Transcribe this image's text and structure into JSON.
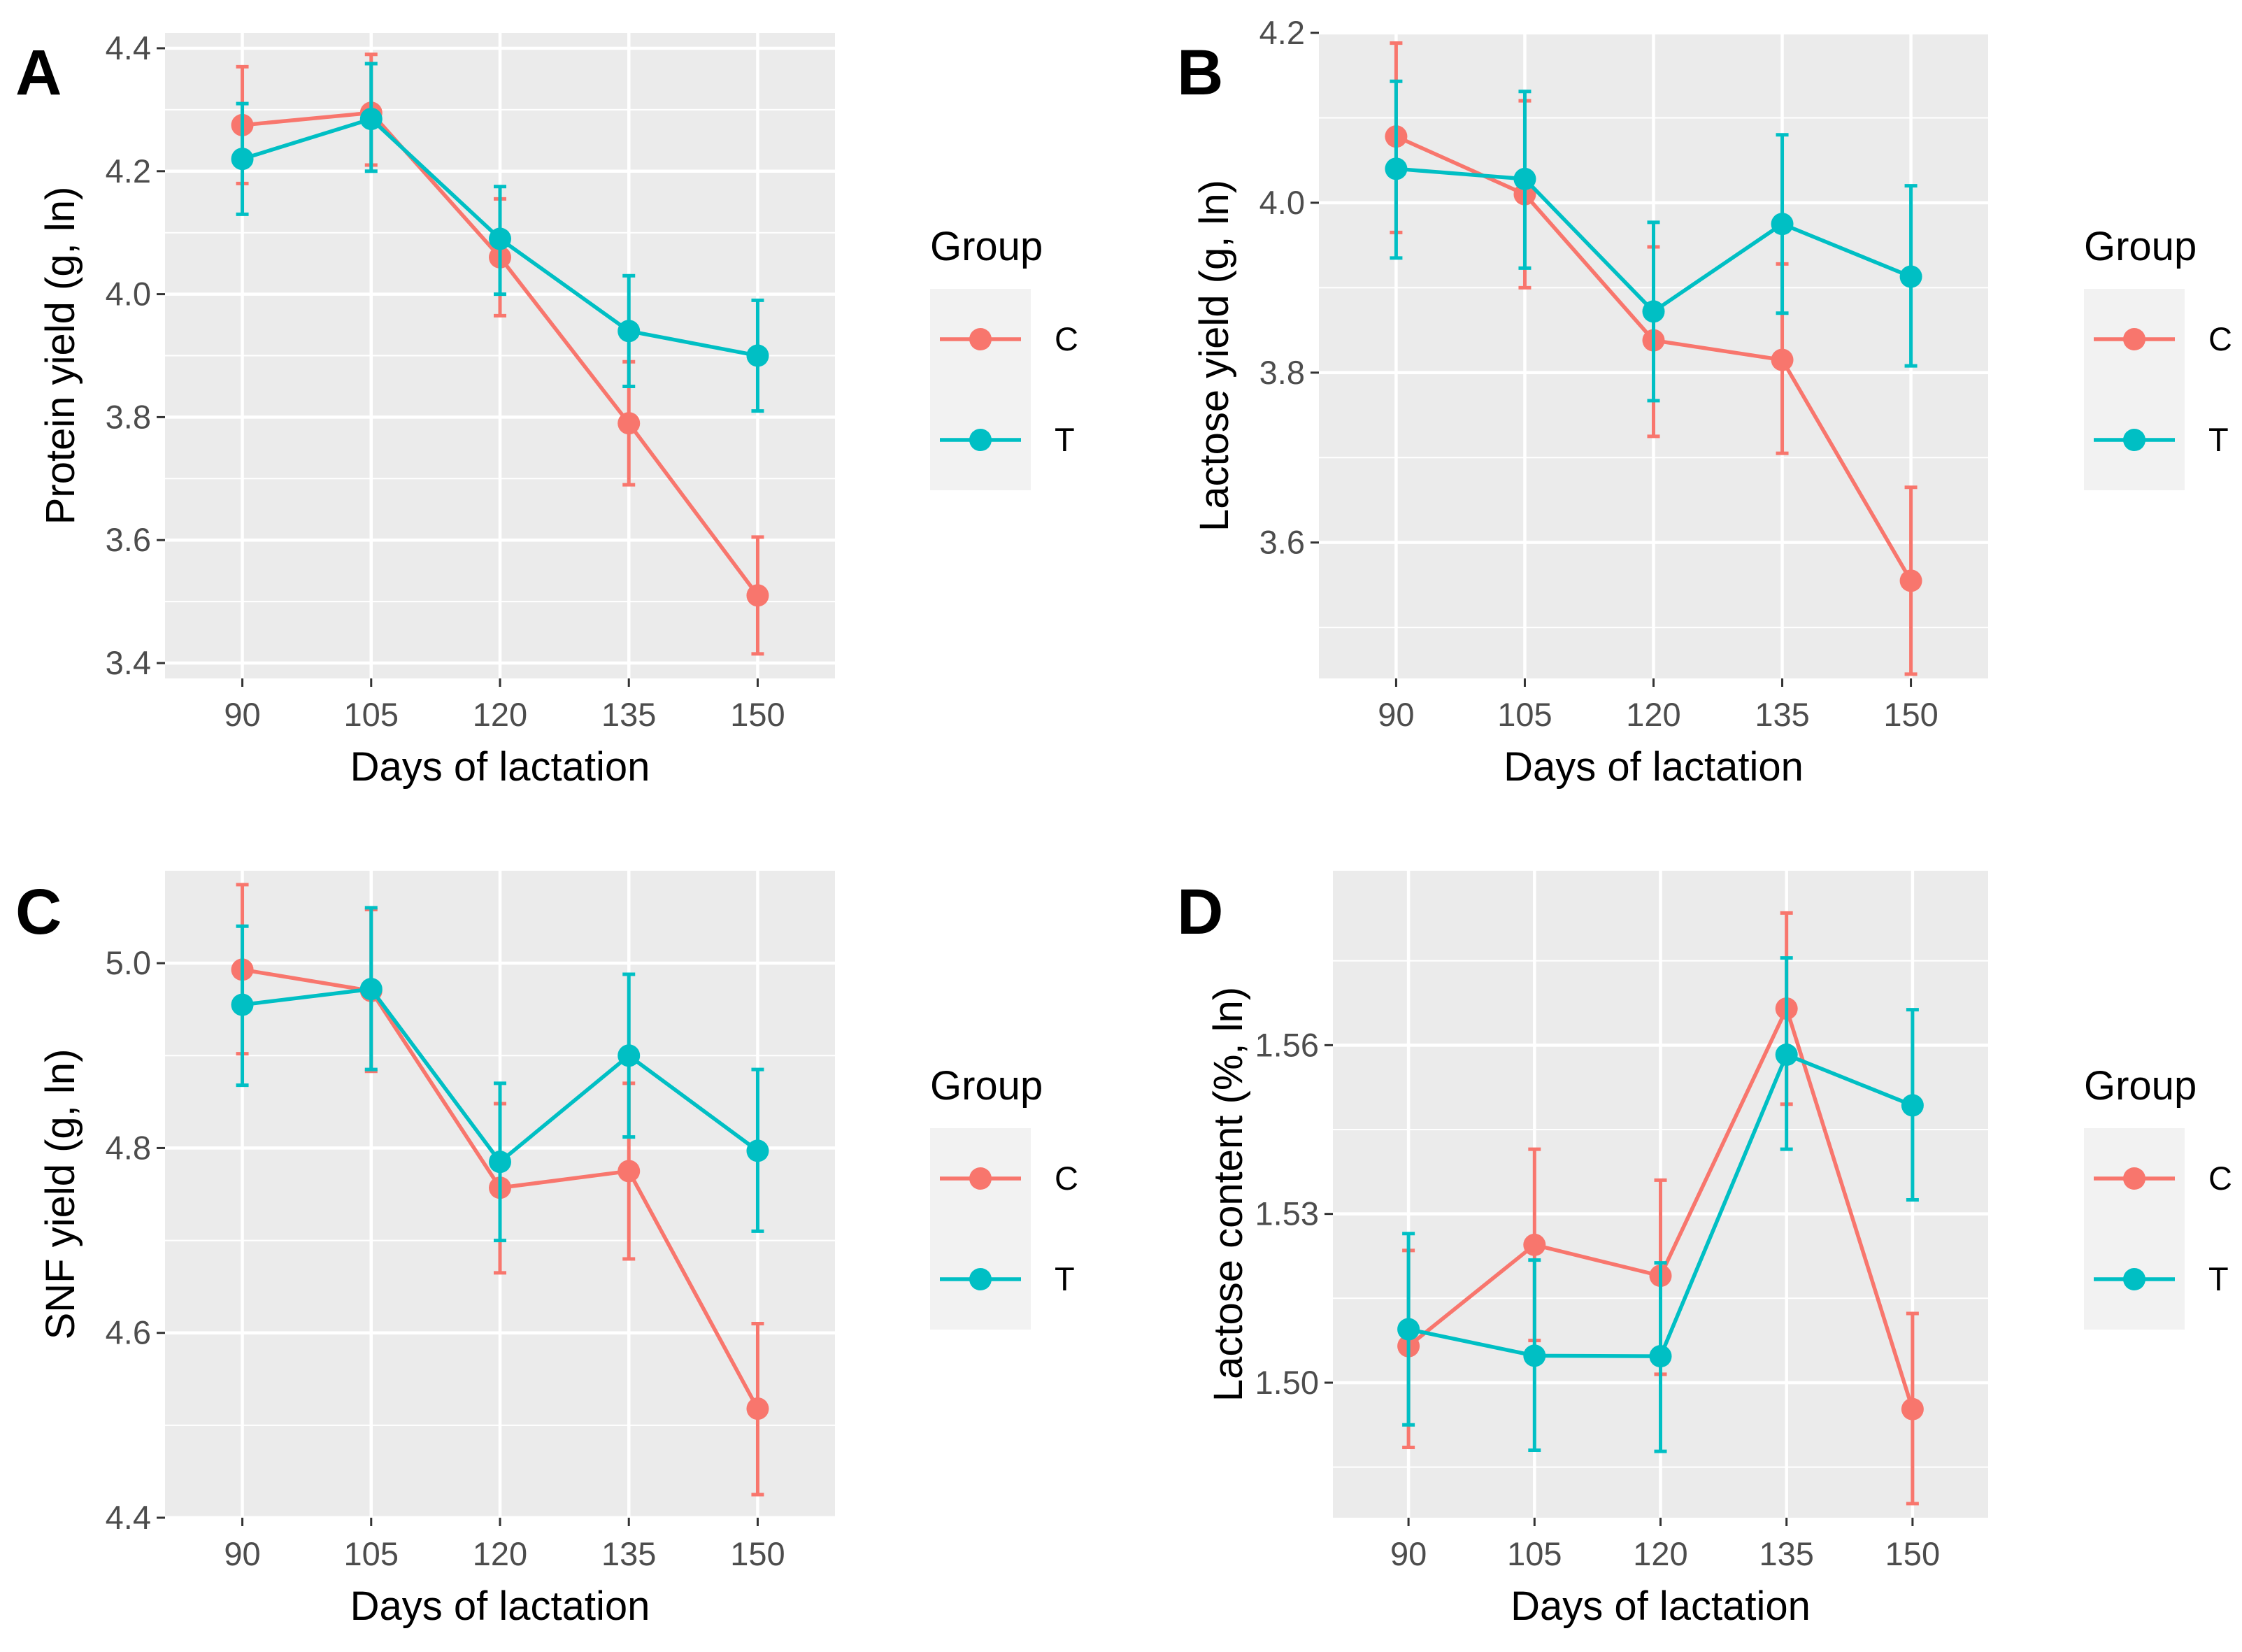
{
  "colors": {
    "C": "#F8766D",
    "T": "#00BFC4",
    "panel_bg": "#EBEBEB",
    "grid": "#FFFFFF",
    "legend_key_bg": "#F2F2F2"
  },
  "legend": {
    "title": "Group",
    "items": [
      {
        "label": "C",
        "color": "#F8766D"
      },
      {
        "label": "T",
        "color": "#00BFC4"
      }
    ]
  },
  "chart_data": [
    {
      "panel": "A",
      "type": "line",
      "xlabel": "Days of lactation",
      "ylabel": "Protein yield (g, ln)",
      "categories": [
        "90",
        "105",
        "120",
        "135",
        "150"
      ],
      "yticks": [
        "3.4",
        "3.6",
        "3.8",
        "4.0",
        "4.2",
        "4.4"
      ],
      "ylim": [
        3.375,
        4.425
      ],
      "series": [
        {
          "name": "C",
          "values": [
            4.275,
            4.295,
            4.06,
            3.79,
            3.51
          ],
          "lower": [
            4.18,
            4.21,
            3.965,
            3.69,
            3.415
          ],
          "upper": [
            4.37,
            4.39,
            4.155,
            3.89,
            3.605
          ]
        },
        {
          "name": "T",
          "values": [
            4.22,
            4.285,
            4.09,
            3.94,
            3.9
          ],
          "lower": [
            4.13,
            4.2,
            4.0,
            3.85,
            3.81
          ],
          "upper": [
            4.31,
            4.375,
            4.175,
            4.03,
            3.99
          ]
        }
      ]
    },
    {
      "panel": "B",
      "type": "line",
      "xlabel": "Days of lactation",
      "ylabel": "Lactose yield (g, ln)",
      "categories": [
        "90",
        "105",
        "120",
        "135",
        "150"
      ],
      "yticks": [
        "3.6",
        "3.8",
        "4.0",
        "4.2"
      ],
      "ylim": [
        3.44,
        4.2
      ],
      "series": [
        {
          "name": "C",
          "values": [
            4.078,
            4.01,
            3.838,
            3.815,
            3.555
          ],
          "lower": [
            3.965,
            3.9,
            3.725,
            3.705,
            3.445
          ],
          "upper": [
            4.188,
            4.12,
            3.948,
            3.928,
            3.665
          ]
        },
        {
          "name": "T",
          "values": [
            4.04,
            4.028,
            3.872,
            3.975,
            3.913
          ],
          "lower": [
            3.935,
            3.923,
            3.767,
            3.87,
            3.808
          ],
          "upper": [
            4.143,
            4.131,
            3.977,
            4.08,
            4.02
          ]
        }
      ]
    },
    {
      "panel": "C",
      "type": "line",
      "xlabel": "Days of lactation",
      "ylabel": "SNF yield (g, ln)",
      "categories": [
        "90",
        "105",
        "120",
        "135",
        "150"
      ],
      "yticks": [
        "4.4",
        "4.6",
        "4.8",
        "5.0"
      ],
      "ylim": [
        4.4,
        5.1
      ],
      "series": [
        {
          "name": "C",
          "values": [
            4.993,
            4.97,
            4.757,
            4.775,
            4.518
          ],
          "lower": [
            4.902,
            4.883,
            4.665,
            4.68,
            4.425
          ],
          "upper": [
            5.085,
            5.058,
            4.848,
            4.87,
            4.61
          ]
        },
        {
          "name": "T",
          "values": [
            4.955,
            4.972,
            4.785,
            4.9,
            4.797
          ],
          "lower": [
            4.868,
            4.885,
            4.7,
            4.812,
            4.71
          ],
          "upper": [
            5.04,
            5.06,
            4.87,
            4.988,
            4.885
          ]
        }
      ]
    },
    {
      "panel": "D",
      "type": "line",
      "xlabel": "Days of lactation",
      "ylabel": "Lactose content (%, ln)",
      "categories": [
        "90",
        "105",
        "120",
        "135",
        "150"
      ],
      "yticks": [
        "1.50",
        "1.53",
        "1.56"
      ],
      "ylim": [
        1.476,
        1.591
      ],
      "series": [
        {
          "name": "C",
          "values": [
            1.5065,
            1.5245,
            1.519,
            1.5665,
            1.4953
          ],
          "lower": [
            1.4885,
            1.5075,
            1.5015,
            1.5495,
            1.4785
          ],
          "upper": [
            1.5235,
            1.5415,
            1.536,
            1.5835,
            1.5123
          ]
        },
        {
          "name": "T",
          "values": [
            1.5095,
            1.5048,
            1.5047,
            1.5583,
            1.5493
          ],
          "lower": [
            1.4925,
            1.488,
            1.4878,
            1.5415,
            1.5325
          ],
          "upper": [
            1.5265,
            1.5218,
            1.5213,
            1.5755,
            1.5663
          ]
        }
      ]
    }
  ]
}
